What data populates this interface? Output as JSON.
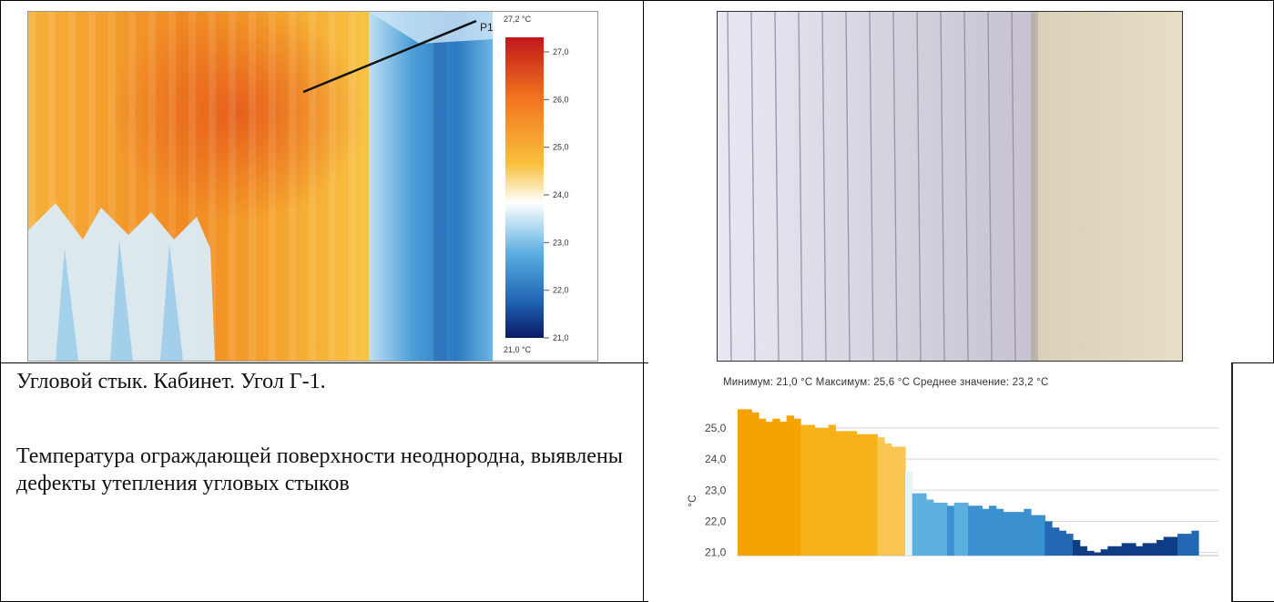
{
  "thermal": {
    "marker_label": "P1",
    "scale_top_label": "27,2 °C",
    "scale_bottom_label": "21,0 °C",
    "scale_ticks": [
      "27,0",
      "26,0",
      "25,0",
      "24,0",
      "23,0",
      "22,0",
      "21,0"
    ]
  },
  "caption": {
    "title": "Угловой стык. Кабинет. Угол Г-1.",
    "description": "Температура ограждающей поверхности неоднородна, выявлены дефекты утепления угловых стыков"
  },
  "chart_data": {
    "type": "area",
    "stats": "Минимум: 21,0 °C Максимум: 25,6 °C Среднее значение: 23,2 °C",
    "ylabel": "°C",
    "ylim": [
      20.9,
      25.7
    ],
    "yticks": [
      "25,0",
      "24,0",
      "23,0",
      "22,0",
      "21,0"
    ],
    "ytick_values": [
      25.0,
      24.0,
      23.0,
      22.0,
      21.0
    ],
    "values": [
      25.6,
      25.6,
      25.5,
      25.3,
      25.2,
      25.3,
      25.2,
      25.4,
      25.3,
      25.1,
      25.1,
      25.0,
      25.0,
      25.1,
      24.9,
      24.9,
      24.9,
      24.8,
      24.8,
      24.8,
      24.7,
      24.5,
      24.4,
      24.4,
      23.6,
      22.9,
      22.9,
      22.7,
      22.6,
      22.6,
      22.5,
      22.6,
      22.6,
      22.5,
      22.5,
      22.4,
      22.5,
      22.4,
      22.3,
      22.3,
      22.3,
      22.4,
      22.2,
      22.2,
      22.0,
      21.8,
      21.7,
      21.6,
      21.4,
      21.2,
      21.05,
      21.0,
      21.1,
      21.2,
      21.2,
      21.3,
      21.3,
      21.2,
      21.3,
      21.3,
      21.4,
      21.5,
      21.5,
      21.6,
      21.6,
      21.7
    ]
  }
}
